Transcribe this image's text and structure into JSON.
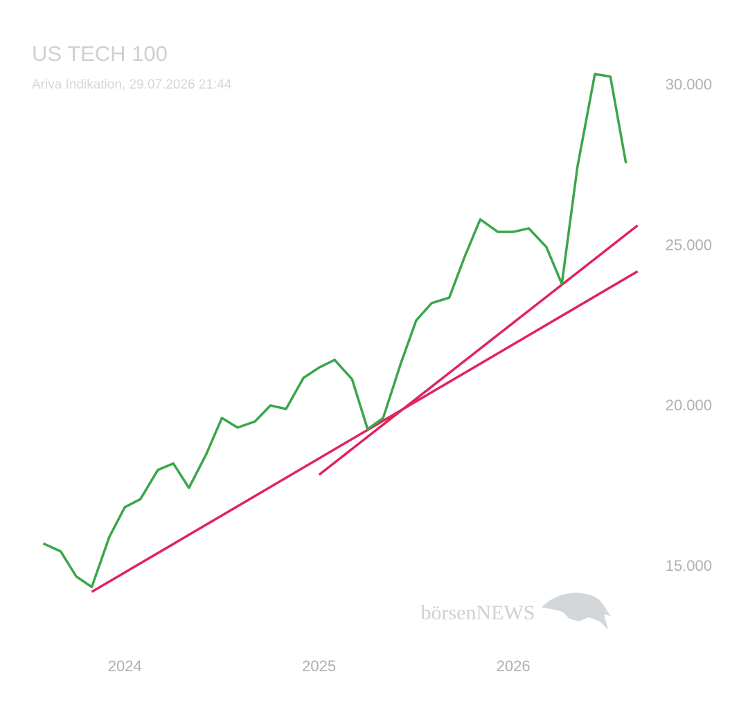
{
  "chart_data": {
    "type": "line",
    "title": "US TECH 100",
    "subtitle": "Ariva Indikation, 29.07.2026 21:44",
    "watermark": "börsenNEWS",
    "x": [
      2023.58,
      2023.67,
      2023.75,
      2023.83,
      2023.92,
      2024.0,
      2024.08,
      2024.17,
      2024.25,
      2024.33,
      2024.42,
      2024.5,
      2024.58,
      2024.67,
      2024.75,
      2024.83,
      2024.92,
      2025.0,
      2025.08,
      2025.17,
      2025.25,
      2025.33,
      2025.42,
      2025.5,
      2025.58,
      2025.67,
      2025.75,
      2025.83,
      2025.92,
      2026.0,
      2026.08,
      2026.17,
      2026.25,
      2026.33,
      2026.42,
      2026.5,
      2026.58
    ],
    "series": [
      {
        "name": "US TECH 100",
        "color": "#3aa64a",
        "values": [
          15730,
          15480,
          14700,
          14370,
          15930,
          16860,
          17110,
          18020,
          18220,
          17460,
          18520,
          19640,
          19340,
          19530,
          20030,
          19920,
          20890,
          21210,
          21450,
          20850,
          19290,
          19640,
          21320,
          22680,
          23220,
          23390,
          24670,
          25830,
          25440,
          25440,
          25550,
          24970,
          23820,
          27450,
          30360,
          30280,
          27580
        ]
      }
    ],
    "trendlines": [
      {
        "color": "#e0245e",
        "x": [
          2023.83,
          2026.64
        ],
        "values": [
          14220,
          24210
        ]
      },
      {
        "color": "#e0245e",
        "x": [
          2025.0,
          2026.64
        ],
        "values": [
          17870,
          25640
        ]
      }
    ],
    "xlim": [
      2023.5,
      2026.67
    ],
    "xticks": [
      2024,
      2025,
      2026
    ],
    "ylim": [
      12500,
      32000
    ],
    "yticks": [
      {
        "value": 15000,
        "label": "15.000"
      },
      {
        "value": 20000,
        "label": "20.000"
      },
      {
        "value": 25000,
        "label": "25.000"
      },
      {
        "value": 30000,
        "label": "30.000"
      }
    ],
    "grid": false
  }
}
